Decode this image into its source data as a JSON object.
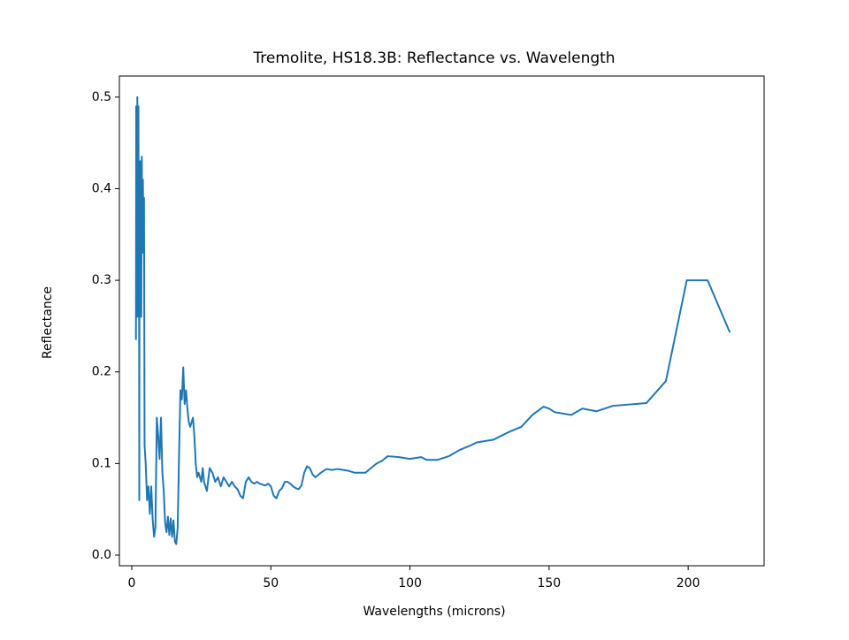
{
  "chart_data": {
    "type": "line",
    "title": "Tremolite, HS18.3B: Reflectance vs. Wavelength",
    "x_label": "Wavelengths (microns)",
    "y_label": "Reflectance",
    "xlim": [
      -4.45,
      227.3
    ],
    "ylim": [
      -0.0116,
      0.523
    ],
    "xticks": [
      0,
      50,
      100,
      150,
      200
    ],
    "yticks": [
      {
        "value": 0,
        "label": "0.0"
      },
      0.1,
      0.2,
      0.3,
      0.4,
      0.5
    ],
    "series": [
      {
        "color": "#1f77b4",
        "x": [
          1.5,
          1.6,
          1.7,
          1.8,
          1.9,
          2.0,
          2.1,
          2.2,
          2.3,
          2.4,
          2.5,
          2.6,
          2.7,
          2.8,
          3.0,
          3.2,
          3.4,
          3.6,
          3.8,
          4.0,
          4.2,
          4.4,
          4.6,
          5,
          5.5,
          6,
          6.5,
          7,
          7.5,
          8,
          8.5,
          9,
          9.5,
          10,
          10.5,
          11,
          11.5,
          12,
          12.5,
          13,
          13.5,
          14,
          14.5,
          15,
          15.5,
          16,
          16.5,
          17,
          17.5,
          18,
          18.5,
          19,
          19.5,
          20,
          20.5,
          21,
          21.5,
          22,
          22.5,
          23,
          23.5,
          24,
          25,
          25.5,
          26,
          27,
          28,
          29,
          30,
          31,
          32,
          33,
          34,
          35,
          36,
          37,
          38,
          39,
          40,
          41,
          42,
          43,
          44,
          45,
          46,
          47,
          48,
          49,
          50,
          51,
          52,
          53,
          54,
          55,
          56,
          57,
          58,
          59,
          60,
          61,
          62,
          63,
          64,
          65,
          66,
          68,
          70,
          72,
          74,
          76,
          78,
          80,
          84,
          86,
          88,
          90,
          92,
          96,
          100,
          104,
          106,
          110,
          114,
          118,
          122,
          124,
          130,
          136,
          140,
          144,
          148,
          150,
          152,
          158,
          162,
          167,
          173,
          185,
          192,
          199.5,
          207,
          215
        ],
        "values": [
          0.235,
          0.49,
          0.3,
          0.47,
          0.26,
          0.5,
          0.32,
          0.46,
          0.35,
          0.49,
          0.26,
          0.42,
          0.06,
          0.43,
          0.3,
          0.43,
          0.26,
          0.435,
          0.33,
          0.41,
          0.35,
          0.39,
          0.12,
          0.1,
          0.06,
          0.075,
          0.045,
          0.075,
          0.04,
          0.02,
          0.03,
          0.15,
          0.13,
          0.105,
          0.15,
          0.09,
          0.07,
          0.035,
          0.025,
          0.042,
          0.022,
          0.04,
          0.02,
          0.038,
          0.015,
          0.012,
          0.03,
          0.11,
          0.18,
          0.17,
          0.205,
          0.165,
          0.18,
          0.16,
          0.145,
          0.14,
          0.145,
          0.15,
          0.13,
          0.1,
          0.085,
          0.09,
          0.08,
          0.095,
          0.08,
          0.07,
          0.095,
          0.09,
          0.08,
          0.085,
          0.075,
          0.085,
          0.08,
          0.075,
          0.08,
          0.075,
          0.072,
          0.065,
          0.062,
          0.08,
          0.085,
          0.08,
          0.078,
          0.08,
          0.078,
          0.077,
          0.076,
          0.078,
          0.075,
          0.065,
          0.062,
          0.07,
          0.073,
          0.08,
          0.08,
          0.078,
          0.075,
          0.073,
          0.072,
          0.076,
          0.09,
          0.097,
          0.095,
          0.088,
          0.085,
          0.09,
          0.094,
          0.093,
          0.094,
          0.093,
          0.092,
          0.09,
          0.09,
          0.095,
          0.1,
          0.103,
          0.108,
          0.107,
          0.105,
          0.107,
          0.104,
          0.104,
          0.108,
          0.115,
          0.12,
          0.123,
          0.126,
          0.135,
          0.14,
          0.153,
          0.162,
          0.16,
          0.156,
          0.153,
          0.16,
          0.157,
          0.163,
          0.166,
          0.19,
          0.3,
          0.3,
          0.243
        ]
      }
    ]
  }
}
